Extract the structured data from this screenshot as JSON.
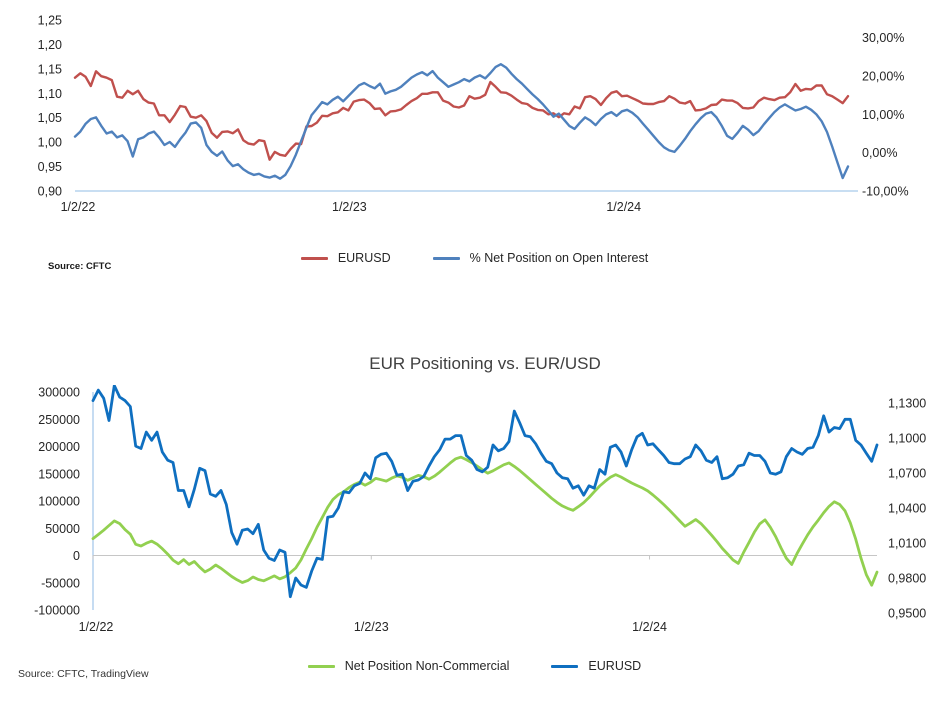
{
  "colors": {
    "eurusd_top": "#C0504D",
    "net_oi_pct": "#4F81BD",
    "net_position": "#92D050",
    "eurusd_bottom": "#0F6FC0",
    "axis_line": "#A8C9EA",
    "zero_line": "#C6C6C6",
    "tick_text": "#262626",
    "title_text": "#404040"
  },
  "top_chart": {
    "source": "Source: CFTC",
    "legend": [
      {
        "label": "EURUSD",
        "color": "#C0504D"
      },
      {
        "label": "% Net Position on Open Interest",
        "color": "#4F81BD"
      }
    ]
  },
  "bottom_chart": {
    "title": "EUR Positioning vs. EUR/USD",
    "source": "Source: CFTC, TradingView",
    "legend": [
      {
        "label": "Net Position Non-Commercial",
        "color": "#92D050"
      },
      {
        "label": "EURUSD",
        "color": "#0F6FC0"
      }
    ]
  },
  "chart_data": [
    {
      "type": "line",
      "title": "",
      "x_tick_labels": [
        "1/2/22",
        "1/2/23",
        "1/2/24"
      ],
      "x_tick_weeks": [
        0,
        52.18,
        104.35
      ],
      "weeks_total": 147,
      "grid": "off",
      "legend_position": "bottom",
      "left_axis": {
        "tick_labels": [
          "1,25",
          "1,20",
          "1,15",
          "1,10",
          "1,05",
          "1,00",
          "0,95",
          "0,90"
        ],
        "tick_values": [
          1.25,
          1.2,
          1.15,
          1.1,
          1.05,
          1.0,
          0.95,
          0.9
        ],
        "lim": [
          0.9,
          1.25
        ]
      },
      "right_axis": {
        "tick_labels": [
          "30,00%",
          "20,00%",
          "10,00%",
          "0,00%",
          "-10,00%"
        ],
        "tick_values": [
          30,
          20,
          10,
          0,
          -10
        ],
        "lim": [
          -10,
          34.63
        ]
      },
      "series": [
        {
          "name": "EURUSD",
          "axis": "left",
          "color": "#C0504D",
          "width": 2.4,
          "values": [
            1.132,
            1.141,
            1.134,
            1.115,
            1.145,
            1.135,
            1.132,
            1.127,
            1.093,
            1.091,
            1.105,
            1.098,
            1.105,
            1.088,
            1.081,
            1.079,
            1.055,
            1.055,
            1.041,
            1.056,
            1.074,
            1.072,
            1.052,
            1.05,
            1.055,
            1.043,
            1.019,
            1.009,
            1.021,
            1.022,
            1.018,
            1.026,
            1.004,
            0.997,
            0.995,
            1.004,
            1.002,
            0.964,
            0.98,
            0.974,
            0.972,
            0.986,
            0.997,
            0.996,
            1.032,
            1.033,
            1.04,
            1.054,
            1.053,
            1.059,
            1.061,
            1.07,
            1.065,
            1.083,
            1.086,
            1.087,
            1.08,
            1.068,
            1.069,
            1.055,
            1.063,
            1.064,
            1.067,
            1.076,
            1.084,
            1.09,
            1.099,
            1.099,
            1.102,
            1.102,
            1.085,
            1.081,
            1.073,
            1.071,
            1.075,
            1.094,
            1.089,
            1.091,
            1.097,
            1.123,
            1.113,
            1.102,
            1.101,
            1.095,
            1.087,
            1.08,
            1.078,
            1.07,
            1.066,
            1.065,
            1.057,
            1.059,
            1.051,
            1.059,
            1.057,
            1.073,
            1.069,
            1.092,
            1.094,
            1.088,
            1.076,
            1.09,
            1.101,
            1.104,
            1.094,
            1.095,
            1.09,
            1.085,
            1.079,
            1.078,
            1.078,
            1.082,
            1.084,
            1.094,
            1.089,
            1.081,
            1.079,
            1.084,
            1.065,
            1.066,
            1.069,
            1.076,
            1.077,
            1.087,
            1.085,
            1.085,
            1.08,
            1.07,
            1.069,
            1.071,
            1.084,
            1.091,
            1.088,
            1.086,
            1.091,
            1.092,
            1.102,
            1.119,
            1.105,
            1.109,
            1.108,
            1.116,
            1.116,
            1.098,
            1.094,
            1.087,
            1.08,
            1.094
          ]
        },
        {
          "name": "% Net Position on Open Interest",
          "axis": "right",
          "color": "#4F81BD",
          "width": 2.4,
          "values": [
            4.2,
            5.5,
            7.5,
            8.8,
            9.2,
            7.0,
            5.0,
            5.5,
            4.0,
            4.5,
            3.0,
            -1.0,
            3.5,
            4.0,
            5.0,
            5.5,
            4.0,
            2.0,
            2.8,
            1.5,
            3.5,
            5.2,
            7.6,
            7.9,
            6.5,
            2.0,
            0.2,
            -0.8,
            0.3,
            -2.0,
            -3.5,
            -3.0,
            -4.3,
            -5.2,
            -5.8,
            -5.5,
            -6.2,
            -6.5,
            -6.0,
            -6.8,
            -5.8,
            -3.5,
            -0.5,
            3.0,
            6.5,
            9.8,
            11.5,
            13.2,
            12.6,
            13.8,
            14.6,
            13.4,
            14.8,
            16.2,
            17.6,
            18.2,
            17.4,
            16.8,
            18.0,
            15.4,
            16.0,
            16.4,
            17.2,
            18.4,
            19.6,
            20.4,
            21.0,
            20.2,
            21.3,
            19.6,
            18.4,
            17.2,
            17.8,
            18.4,
            19.2,
            18.6,
            19.6,
            20.2,
            19.4,
            20.8,
            22.4,
            23.1,
            22.2,
            20.6,
            19.2,
            18.0,
            16.6,
            15.2,
            14.0,
            12.6,
            11.0,
            9.4,
            10.2,
            8.6,
            7.0,
            6.2,
            7.8,
            9.2,
            8.4,
            7.2,
            8.8,
            10.0,
            10.6,
            9.6,
            10.8,
            11.2,
            10.4,
            9.2,
            7.6,
            6.0,
            4.4,
            2.8,
            1.4,
            0.6,
            0.2,
            1.8,
            3.6,
            5.6,
            7.4,
            9.0,
            10.2,
            10.6,
            9.2,
            7.0,
            4.4,
            3.6,
            5.2,
            7.0,
            6.0,
            4.6,
            5.6,
            7.4,
            9.0,
            10.6,
            11.8,
            12.6,
            11.8,
            11.0,
            11.4,
            12.0,
            11.2,
            10.0,
            8.2,
            5.4,
            1.6,
            -2.6,
            -6.6,
            -3.6
          ]
        }
      ]
    },
    {
      "type": "line",
      "title": "EUR Positioning vs. EUR/USD",
      "x_tick_labels": [
        "1/2/22",
        "1/2/23",
        "1/2/24"
      ],
      "x_tick_weeks": [
        0,
        52.18,
        104.35
      ],
      "weeks_total": 147,
      "grid": "zero-line-only",
      "legend_position": "bottom",
      "left_axis": {
        "tick_labels": [
          "300000",
          "250000",
          "200000",
          "150000",
          "100000",
          "50000",
          "0",
          "-50000",
          "-100000"
        ],
        "tick_values": [
          300000,
          250000,
          200000,
          150000,
          100000,
          50000,
          0,
          -50000,
          -100000
        ],
        "lim": [
          -100000,
          300000
        ]
      },
      "right_axis": {
        "tick_labels": [
          "1,1300",
          "1,1000",
          "1,0700",
          "1,0400",
          "1,0100",
          "0,9800",
          "0,9500"
        ],
        "tick_values": [
          1.13,
          1.1,
          1.07,
          1.04,
          1.01,
          0.98,
          0.95
        ],
        "lim": [
          0.9526,
          1.1394
        ]
      },
      "series": [
        {
          "name": "Net Position Non-Commercial",
          "axis": "left",
          "color": "#92D050",
          "width": 2.8,
          "values": [
            31000,
            38500,
            46500,
            55000,
            63500,
            58500,
            47500,
            39000,
            20500,
            17500,
            22500,
            26500,
            21000,
            12500,
            2500,
            -8500,
            -15000,
            -7500,
            -16500,
            -11000,
            -21500,
            -30000,
            -25000,
            -17500,
            -23500,
            -31000,
            -38500,
            -44500,
            -49500,
            -46000,
            -39500,
            -44000,
            -46500,
            -42000,
            -37500,
            -43000,
            -39000,
            -31500,
            -23000,
            -8000,
            12000,
            31000,
            52000,
            70000,
            88500,
            103000,
            111500,
            117000,
            124500,
            130500,
            134500,
            129000,
            134000,
            141500,
            139000,
            136500,
            142000,
            146000,
            143500,
            138000,
            142500,
            147000,
            144500,
            140000,
            145500,
            153000,
            161500,
            170000,
            177500,
            180500,
            176000,
            170500,
            164000,
            157500,
            151000,
            155500,
            161000,
            166500,
            170000,
            163500,
            156000,
            147500,
            139000,
            130500,
            122000,
            113500,
            105000,
            97500,
            91000,
            86500,
            83000,
            89500,
            97000,
            106500,
            117000,
            127500,
            136000,
            143500,
            148500,
            144000,
            138500,
            133000,
            128500,
            124000,
            118500,
            111000,
            102500,
            93500,
            84000,
            74000,
            63500,
            53500,
            59500,
            66000,
            58500,
            48000,
            37000,
            25500,
            13000,
            2500,
            -8000,
            -14500,
            6000,
            24000,
            42500,
            58000,
            65500,
            52000,
            34500,
            14000,
            -5000,
            -16500,
            3500,
            21000,
            38000,
            52500,
            65000,
            78500,
            90000,
            98500,
            93500,
            82000,
            60000,
            30000,
            -5000,
            -35000,
            -54500,
            -30500
          ]
        },
        {
          "name": "EURUSD",
          "axis": "right",
          "color": "#0F6FC0",
          "width": 2.8,
          "values": [
            1.132,
            1.141,
            1.134,
            1.115,
            1.145,
            1.135,
            1.132,
            1.127,
            1.093,
            1.091,
            1.105,
            1.098,
            1.105,
            1.088,
            1.081,
            1.079,
            1.055,
            1.055,
            1.041,
            1.056,
            1.074,
            1.072,
            1.052,
            1.05,
            1.055,
            1.043,
            1.019,
            1.009,
            1.021,
            1.022,
            1.018,
            1.026,
            1.004,
            0.997,
            0.995,
            1.004,
            1.002,
            0.964,
            0.98,
            0.974,
            0.972,
            0.986,
            0.997,
            0.996,
            1.032,
            1.033,
            1.04,
            1.054,
            1.053,
            1.059,
            1.061,
            1.07,
            1.065,
            1.083,
            1.086,
            1.087,
            1.08,
            1.068,
            1.069,
            1.055,
            1.063,
            1.064,
            1.067,
            1.076,
            1.084,
            1.09,
            1.099,
            1.099,
            1.102,
            1.102,
            1.085,
            1.081,
            1.073,
            1.071,
            1.075,
            1.094,
            1.089,
            1.091,
            1.097,
            1.123,
            1.113,
            1.102,
            1.101,
            1.095,
            1.087,
            1.08,
            1.078,
            1.07,
            1.066,
            1.065,
            1.057,
            1.059,
            1.051,
            1.059,
            1.057,
            1.073,
            1.069,
            1.092,
            1.094,
            1.088,
            1.076,
            1.09,
            1.101,
            1.104,
            1.094,
            1.095,
            1.09,
            1.085,
            1.079,
            1.078,
            1.078,
            1.082,
            1.084,
            1.094,
            1.089,
            1.081,
            1.079,
            1.084,
            1.065,
            1.066,
            1.069,
            1.076,
            1.077,
            1.087,
            1.085,
            1.085,
            1.08,
            1.07,
            1.069,
            1.071,
            1.084,
            1.091,
            1.088,
            1.086,
            1.091,
            1.092,
            1.102,
            1.119,
            1.105,
            1.109,
            1.108,
            1.116,
            1.116,
            1.098,
            1.094,
            1.087,
            1.08,
            1.094
          ]
        }
      ]
    }
  ]
}
